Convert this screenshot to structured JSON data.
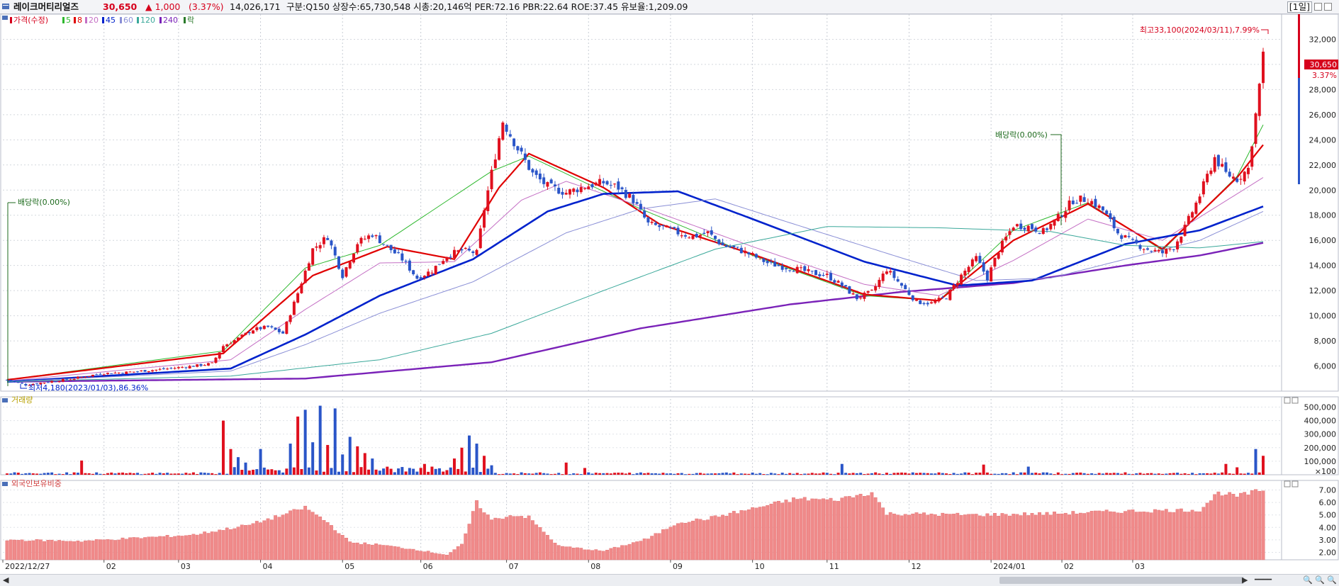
{
  "header": {
    "name": "레이크머티리얼즈",
    "price": "30,650",
    "change": "▲ 1,000",
    "change_pct": "(3.37%)",
    "volume": "14,026,171",
    "info": "구분:Q150 상장수:65,730,548 시총:20,146억 PER:72.16 PBR:22.64 ROE:37.45 유보율:1,209.09",
    "period": "[1일]"
  },
  "legend": {
    "items": [
      {
        "label": "가격(수정)",
        "color": "#d6001c"
      },
      {
        "label": "5",
        "color": "#2eb82e"
      },
      {
        "label": "8",
        "color": "#e00000"
      },
      {
        "label": "20",
        "color": "#c46fc4"
      },
      {
        "label": "45",
        "color": "#0022cc"
      },
      {
        "label": "60",
        "color": "#8a8fd6"
      },
      {
        "label": "120",
        "color": "#3aa89a"
      },
      {
        "label": "240",
        "color": "#7a22b8"
      },
      {
        "label": "락",
        "color": "#2a7a2a"
      }
    ]
  },
  "annotations": {
    "high": "최고33,100(2024/03/11),7.99%",
    "low": "최저4,180(2023/01/03),86.36%",
    "dividend_1": "배당락(0.00%)",
    "dividend_2": "배당락(0.00%)",
    "last_price": "30,650",
    "last_pct": "3.37%"
  },
  "panels": {
    "volume_title": "거래량",
    "foreign_title": "외국인보유비중"
  },
  "chart_data": [
    {
      "type": "candlestick",
      "title": "가격(수정)",
      "y_ticks": [
        "32,000",
        "30,000",
        "28,000",
        "26,000",
        "24,000",
        "22,000",
        "20,000",
        "18,000",
        "16,000",
        "14,000",
        "12,000",
        "10,000",
        "8,000",
        "6,000"
      ],
      "ylim": [
        4000,
        34000
      ],
      "x_ticks": [
        "2022/12/27",
        "02",
        "03",
        "04",
        "05",
        "06",
        "07",
        "08",
        "09",
        "10",
        "11",
        "12",
        "2024/01",
        "02",
        "03"
      ],
      "close_path": [
        [
          0,
          4900
        ],
        [
          5,
          4500
        ],
        [
          10,
          4700
        ],
        [
          18,
          5000
        ],
        [
          25,
          5400
        ],
        [
          32,
          5500
        ],
        [
          40,
          5700
        ],
        [
          50,
          6000
        ],
        [
          55,
          6200
        ],
        [
          58,
          7600
        ],
        [
          62,
          8200
        ],
        [
          66,
          8900
        ],
        [
          70,
          9100
        ],
        [
          74,
          8600
        ],
        [
          78,
          11800
        ],
        [
          82,
          15300
        ],
        [
          86,
          16300
        ],
        [
          90,
          13200
        ],
        [
          94,
          15800
        ],
        [
          98,
          16500
        ],
        [
          102,
          15500
        ],
        [
          106,
          14500
        ],
        [
          110,
          13000
        ],
        [
          114,
          13600
        ],
        [
          118,
          14800
        ],
        [
          122,
          15200
        ],
        [
          126,
          15000
        ],
        [
          128,
          18500
        ],
        [
          131,
          22800
        ],
        [
          133,
          25500
        ],
        [
          137,
          23300
        ],
        [
          141,
          21300
        ],
        [
          145,
          20300
        ],
        [
          150,
          19800
        ],
        [
          155,
          20300
        ],
        [
          160,
          20600
        ],
        [
          164,
          20200
        ],
        [
          168,
          19200
        ],
        [
          172,
          17300
        ],
        [
          176,
          17000
        ],
        [
          180,
          16600
        ],
        [
          184,
          16300
        ],
        [
          188,
          16600
        ],
        [
          192,
          15600
        ],
        [
          196,
          15300
        ],
        [
          200,
          14800
        ],
        [
          204,
          14200
        ],
        [
          208,
          13900
        ],
        [
          212,
          13700
        ],
        [
          216,
          13400
        ],
        [
          220,
          13200
        ],
        [
          224,
          12400
        ],
        [
          228,
          11400
        ],
        [
          232,
          11900
        ],
        [
          236,
          13700
        ],
        [
          240,
          12400
        ],
        [
          244,
          11100
        ],
        [
          248,
          11000
        ],
        [
          252,
          11500
        ],
        [
          256,
          13200
        ],
        [
          260,
          14600
        ],
        [
          263,
          13000
        ],
        [
          266,
          15200
        ],
        [
          270,
          17200
        ],
        [
          274,
          17100
        ],
        [
          278,
          16700
        ],
        [
          282,
          17800
        ],
        [
          286,
          19200
        ],
        [
          290,
          19300
        ],
        [
          294,
          18400
        ],
        [
          298,
          16600
        ],
        [
          302,
          15800
        ],
        [
          306,
          15300
        ],
        [
          310,
          15000
        ],
        [
          313,
          15500
        ],
        [
          316,
          17000
        ],
        [
          320,
          19600
        ],
        [
          324,
          22600
        ],
        [
          327,
          21300
        ],
        [
          330,
          20900
        ],
        [
          333,
          21700
        ],
        [
          335,
          26000
        ],
        [
          337,
          30650
        ]
      ],
      "ma_paths": [
        {
          "name": "5",
          "points": [
            [
              0,
              4900
            ],
            [
              58,
              7200
            ],
            [
              80,
              13800
            ],
            [
              100,
              15600
            ],
            [
              130,
              21500
            ],
            [
              140,
              22700
            ],
            [
              170,
              18500
            ],
            [
              200,
              14800
            ],
            [
              230,
              11600
            ],
            [
              250,
              11200
            ],
            [
              270,
              16800
            ],
            [
              290,
              19000
            ],
            [
              310,
              15200
            ],
            [
              330,
              21100
            ],
            [
              337,
              25200
            ]
          ]
        },
        {
          "name": "8",
          "points": [
            [
              0,
              4900
            ],
            [
              58,
              7000
            ],
            [
              82,
              13200
            ],
            [
              102,
              15500
            ],
            [
              120,
              14500
            ],
            [
              132,
              20200
            ],
            [
              140,
              22900
            ],
            [
              160,
              20200
            ],
            [
              175,
              17300
            ],
            [
              200,
              14900
            ],
            [
              230,
              11700
            ],
            [
              250,
              11200
            ],
            [
              270,
              16000
            ],
            [
              290,
              18900
            ],
            [
              310,
              15300
            ],
            [
              330,
              21000
            ],
            [
              337,
              23600
            ]
          ]
        },
        {
          "name": "20",
          "points": [
            [
              0,
              4800
            ],
            [
              60,
              6500
            ],
            [
              80,
              10500
            ],
            [
              100,
              14200
            ],
            [
              120,
              14300
            ],
            [
              138,
              19200
            ],
            [
              150,
              20700
            ],
            [
              170,
              18700
            ],
            [
              200,
              15500
            ],
            [
              230,
              12500
            ],
            [
              250,
              11600
            ],
            [
              270,
              14400
            ],
            [
              290,
              17700
            ],
            [
              310,
              16000
            ],
            [
              330,
              19700
            ],
            [
              337,
              21000
            ]
          ]
        },
        {
          "name": "45",
          "points": [
            [
              0,
              4750
            ],
            [
              60,
              5800
            ],
            [
              80,
              8500
            ],
            [
              100,
              11600
            ],
            [
              125,
              14500
            ],
            [
              145,
              18300
            ],
            [
              160,
              19700
            ],
            [
              180,
              19900
            ],
            [
              200,
              17700
            ],
            [
              230,
              14300
            ],
            [
              255,
              12400
            ],
            [
              275,
              12800
            ],
            [
              300,
              15700
            ],
            [
              320,
              16800
            ],
            [
              337,
              18700
            ]
          ]
        },
        {
          "name": "60",
          "points": [
            [
              0,
              4750
            ],
            [
              60,
              5600
            ],
            [
              80,
              7700
            ],
            [
              100,
              10200
            ],
            [
              125,
              12700
            ],
            [
              150,
              16600
            ],
            [
              170,
              18500
            ],
            [
              190,
              19300
            ],
            [
              210,
              17400
            ],
            [
              240,
              14600
            ],
            [
              260,
              12800
            ],
            [
              280,
              13000
            ],
            [
              300,
              14500
            ],
            [
              320,
              16000
            ],
            [
              337,
              18300
            ]
          ]
        },
        {
          "name": "120",
          "points": [
            [
              0,
              4750
            ],
            [
              60,
              5200
            ],
            [
              100,
              6500
            ],
            [
              130,
              8600
            ],
            [
              160,
              12000
            ],
            [
              190,
              15300
            ],
            [
              220,
              17100
            ],
            [
              250,
              17000
            ],
            [
              280,
              16700
            ],
            [
              300,
              15600
            ],
            [
              320,
              15400
            ],
            [
              337,
              15900
            ]
          ]
        },
        {
          "name": "240",
          "points": [
            [
              0,
              4750
            ],
            [
              80,
              5000
            ],
            [
              130,
              6300
            ],
            [
              170,
              9000
            ],
            [
              210,
              10900
            ],
            [
              240,
              11900
            ],
            [
              270,
              12600
            ],
            [
              300,
              14000
            ],
            [
              320,
              14800
            ],
            [
              337,
              15800
            ]
          ]
        }
      ]
    },
    {
      "type": "bar",
      "title": "거래량",
      "y_ticks": [
        "500,000",
        "400,000",
        "300,000",
        "200,000",
        "100,000",
        "×100"
      ],
      "ylim": [
        0,
        560000
      ],
      "spikes": [
        [
          20,
          105000
        ],
        [
          58,
          400000
        ],
        [
          60,
          190000
        ],
        [
          62,
          130000
        ],
        [
          64,
          90000
        ],
        [
          68,
          190000
        ],
        [
          76,
          230000
        ],
        [
          78,
          430000
        ],
        [
          80,
          480000
        ],
        [
          82,
          240000
        ],
        [
          84,
          510000
        ],
        [
          86,
          220000
        ],
        [
          88,
          490000
        ],
        [
          90,
          150000
        ],
        [
          92,
          280000
        ],
        [
          94,
          210000
        ],
        [
          96,
          160000
        ],
        [
          98,
          120000
        ],
        [
          108,
          50000
        ],
        [
          112,
          80000
        ],
        [
          114,
          60000
        ],
        [
          120,
          120000
        ],
        [
          122,
          200000
        ],
        [
          124,
          290000
        ],
        [
          126,
          230000
        ],
        [
          128,
          140000
        ],
        [
          130,
          70000
        ],
        [
          150,
          90000
        ],
        [
          155,
          50000
        ],
        [
          224,
          80000
        ],
        [
          262,
          75000
        ],
        [
          274,
          60000
        ],
        [
          327,
          80000
        ],
        [
          330,
          55000
        ],
        [
          335,
          190000
        ],
        [
          337,
          140000
        ]
      ]
    },
    {
      "type": "bar",
      "title": "외국인보유비중",
      "y_ticks": [
        "7.00",
        "6.00",
        "5.00",
        "4.00",
        "3.00",
        "2.00"
      ],
      "ylim": [
        1.4,
        7.6
      ],
      "profile": [
        [
          0,
          3.0
        ],
        [
          20,
          2.9
        ],
        [
          50,
          3.4
        ],
        [
          65,
          4.2
        ],
        [
          74,
          5.0
        ],
        [
          80,
          5.6
        ],
        [
          86,
          4.4
        ],
        [
          92,
          2.8
        ],
        [
          100,
          2.6
        ],
        [
          110,
          2.2
        ],
        [
          118,
          1.8
        ],
        [
          122,
          2.6
        ],
        [
          126,
          6.0
        ],
        [
          130,
          4.6
        ],
        [
          136,
          5.0
        ],
        [
          140,
          4.8
        ],
        [
          148,
          2.5
        ],
        [
          160,
          2.1
        ],
        [
          172,
          3.1
        ],
        [
          180,
          4.4
        ],
        [
          188,
          4.7
        ],
        [
          200,
          5.5
        ],
        [
          212,
          6.3
        ],
        [
          222,
          6.2
        ],
        [
          232,
          6.8
        ],
        [
          236,
          5.1
        ],
        [
          260,
          5.0
        ],
        [
          280,
          5.1
        ],
        [
          300,
          5.3
        ],
        [
          320,
          5.4
        ],
        [
          325,
          6.8
        ],
        [
          330,
          6.5
        ],
        [
          337,
          7.0
        ]
      ]
    }
  ]
}
